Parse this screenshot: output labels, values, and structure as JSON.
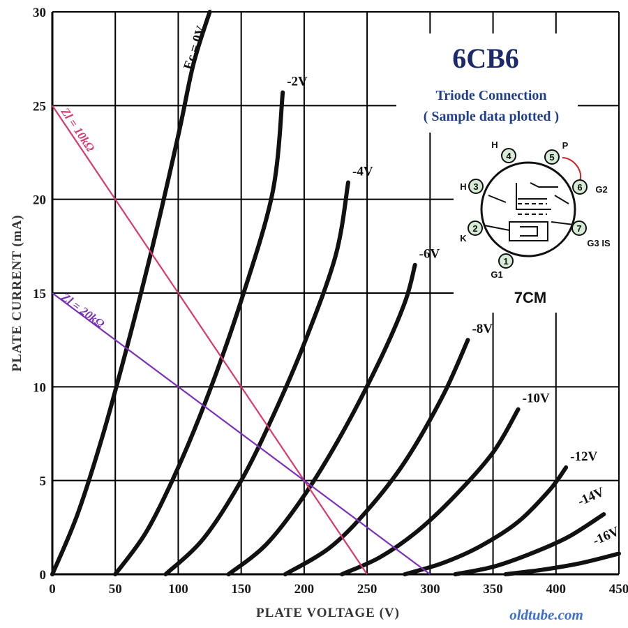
{
  "chart_data": {
    "type": "line",
    "title": "6CB6",
    "subtitle_line1": "Triode  Connection",
    "subtitle_line2": "( Sample data plotted )",
    "xlabel": "PLATE  VOLTAGE  (V)",
    "ylabel": "PLATE  CURRENT  (mA)",
    "xlim": [
      0,
      450
    ],
    "ylim": [
      0,
      30
    ],
    "x_ticks": [
      0,
      50,
      100,
      150,
      200,
      250,
      300,
      350,
      400,
      450
    ],
    "y_ticks": [
      0,
      5,
      10,
      15,
      20,
      25,
      30
    ],
    "grid": true,
    "series": [
      {
        "name": "Ec = 0V",
        "x": [
          0,
          20,
          40,
          60,
          80,
          100,
          112,
          125
        ],
        "y": [
          0,
          3.2,
          7.4,
          12.3,
          17.6,
          23.4,
          27.2,
          30
        ]
      },
      {
        "name": "-2V",
        "x": [
          50,
          75,
          100,
          125,
          150,
          175,
          183
        ],
        "y": [
          0,
          2.3,
          5.7,
          9.8,
          14.6,
          20.4,
          25.7
        ]
      },
      {
        "name": "-4V",
        "x": [
          90,
          120,
          150,
          175,
          200,
          225,
          235
        ],
        "y": [
          0,
          1.9,
          5.0,
          8.4,
          12.3,
          17.0,
          20.9
        ]
      },
      {
        "name": "-6V",
        "x": [
          140,
          170,
          200,
          230,
          260,
          280,
          288
        ],
        "y": [
          0,
          1.6,
          4.2,
          7.5,
          11.4,
          14.5,
          16.5
        ]
      },
      {
        "name": "-8V",
        "x": [
          185,
          220,
          250,
          280,
          310,
          330
        ],
        "y": [
          0,
          1.4,
          3.4,
          6.0,
          9.5,
          12.5
        ]
      },
      {
        "name": "-10V",
        "x": [
          230,
          260,
          290,
          320,
          350,
          370
        ],
        "y": [
          0,
          0.9,
          2.3,
          4.2,
          6.5,
          8.8
        ]
      },
      {
        "name": "-12V",
        "x": [
          280,
          310,
          340,
          370,
          395,
          408
        ],
        "y": [
          0,
          0.6,
          1.5,
          2.8,
          4.5,
          5.7
        ]
      },
      {
        "name": "-14V",
        "x": [
          320,
          350,
          380,
          410,
          438
        ],
        "y": [
          0,
          0.4,
          1.1,
          2.0,
          3.2
        ]
      },
      {
        "name": "-16V",
        "x": [
          360,
          390,
          420,
          450
        ],
        "y": [
          0,
          0.25,
          0.6,
          1.1
        ]
      }
    ],
    "load_lines": [
      {
        "name": "Zl = 10kΩ",
        "x": [
          0,
          250
        ],
        "y": [
          25,
          0
        ],
        "color": "#d63a6e"
      },
      {
        "name": "Zl = 20kΩ",
        "x": [
          0,
          300
        ],
        "y": [
          15,
          0
        ],
        "color": "#7a30b8"
      }
    ]
  },
  "tube_base": {
    "label": "7CM",
    "pins": [
      {
        "num": "1",
        "name": "G1"
      },
      {
        "num": "2",
        "name": "K"
      },
      {
        "num": "3",
        "name": "H"
      },
      {
        "num": "4",
        "name": "H"
      },
      {
        "num": "5",
        "name": "P"
      },
      {
        "num": "6",
        "name": "G2"
      },
      {
        "num": "7",
        "name": "G3 IS"
      }
    ],
    "jumper_color": "#cc2222"
  },
  "watermark": "oldtube.com"
}
